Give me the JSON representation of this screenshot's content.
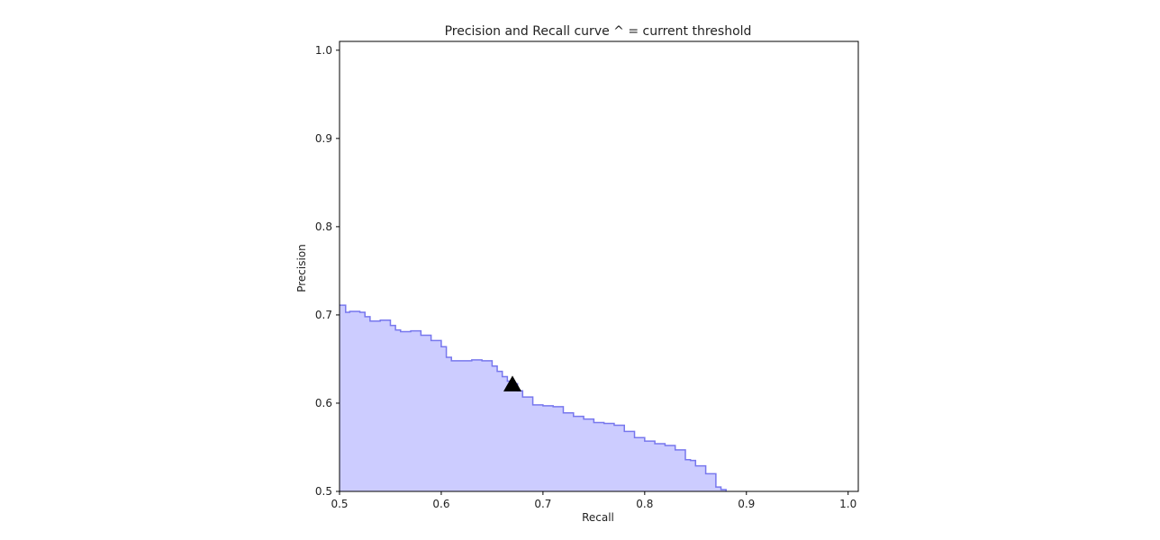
{
  "chart_data": {
    "type": "area",
    "title": "Precision and Recall curve ^ = current threshold",
    "xlabel": "Recall",
    "ylabel": "Precision",
    "xlim": [
      0.5,
      1.01
    ],
    "ylim": [
      0.5,
      1.01
    ],
    "xticks": [
      "0.5",
      "0.6",
      "0.7",
      "0.8",
      "0.9",
      "1.0"
    ],
    "yticks": [
      "0.5",
      "0.6",
      "0.7",
      "0.8",
      "0.9",
      "1.0"
    ],
    "grid": false,
    "fill_color": "#ccccff",
    "line_color": "#7777ee",
    "series": [
      {
        "x": [
          0.5,
          0.505,
          0.506,
          0.51,
          0.52,
          0.525,
          0.53,
          0.54,
          0.55,
          0.555,
          0.56,
          0.57,
          0.58,
          0.59,
          0.6,
          0.605,
          0.61,
          0.62,
          0.63,
          0.64,
          0.65,
          0.655,
          0.66,
          0.665,
          0.67,
          0.675,
          0.68,
          0.69,
          0.7,
          0.71,
          0.72,
          0.73,
          0.74,
          0.75,
          0.76,
          0.77,
          0.78,
          0.79,
          0.8,
          0.81,
          0.82,
          0.83,
          0.84,
          0.845,
          0.85,
          0.86,
          0.87,
          0.875,
          0.88
        ],
        "y": [
          0.711,
          0.711,
          0.703,
          0.704,
          0.703,
          0.698,
          0.693,
          0.694,
          0.688,
          0.683,
          0.681,
          0.682,
          0.677,
          0.671,
          0.664,
          0.652,
          0.648,
          0.648,
          0.649,
          0.648,
          0.642,
          0.636,
          0.63,
          0.625,
          0.622,
          0.614,
          0.607,
          0.598,
          0.597,
          0.596,
          0.589,
          0.585,
          0.582,
          0.578,
          0.577,
          0.575,
          0.568,
          0.561,
          0.557,
          0.554,
          0.552,
          0.547,
          0.536,
          0.535,
          0.529,
          0.52,
          0.505,
          0.502,
          0.5
        ]
      }
    ],
    "marker": {
      "label": "current threshold",
      "x": 0.67,
      "y": 0.621,
      "symbol": "^",
      "color": "#000000"
    }
  }
}
